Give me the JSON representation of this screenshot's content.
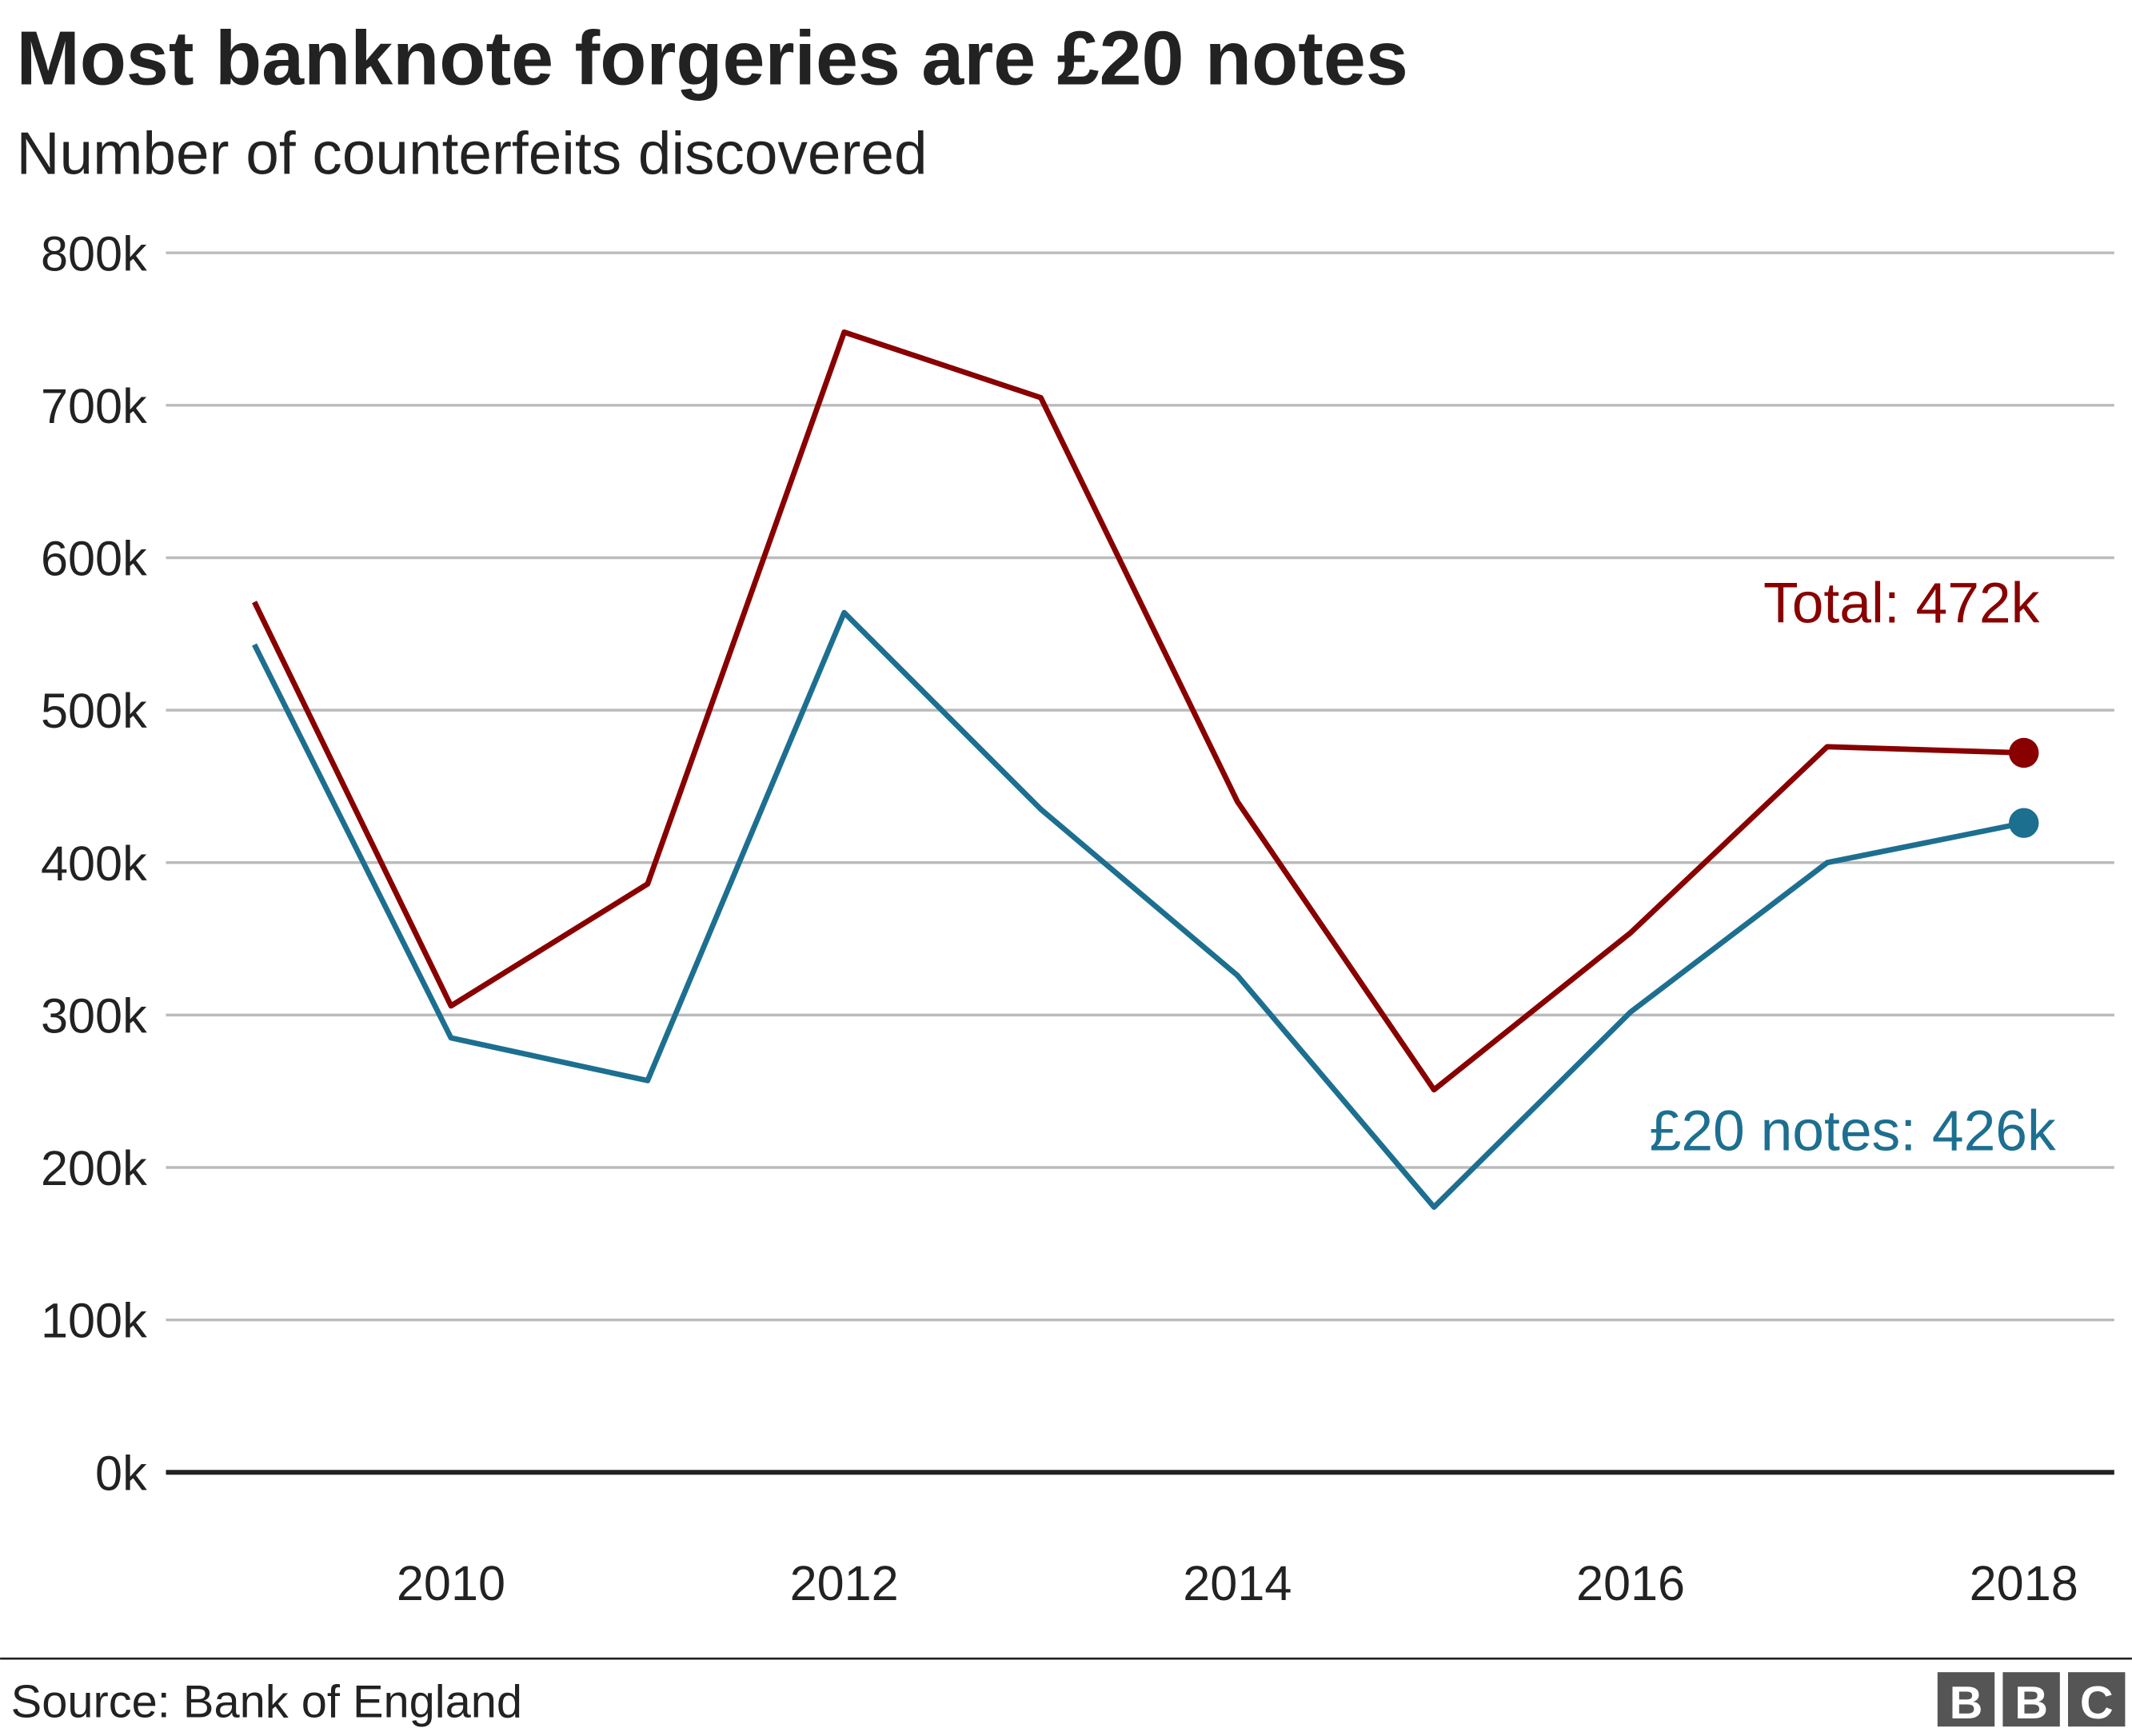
{
  "chart_data": {
    "type": "line",
    "title": "Most banknote forgeries are £20 notes",
    "subtitle": "Number of counterfeits discovered",
    "x": [
      2009,
      2010,
      2011,
      2012,
      2013,
      2014,
      2015,
      2016,
      2017,
      2018
    ],
    "series": [
      {
        "name": "Total",
        "color": "#880000",
        "values": [
          571000,
          306000,
          386000,
          748000,
          705000,
          440000,
          251000,
          354000,
          476000,
          472000
        ]
      },
      {
        "name": "£20 notes",
        "color": "#1d6f90",
        "values": [
          543000,
          285000,
          257000,
          564000,
          435000,
          326000,
          174000,
          302000,
          400000,
          426000
        ]
      }
    ],
    "annotations": [
      "Total: 472k",
      "£20 notes: 426k"
    ],
    "xlim": [
      2008.55,
      2018.46
    ],
    "xticks": [
      2010,
      2012,
      2014,
      2016,
      2018
    ],
    "ylim": [
      0,
      800000
    ],
    "yticks": [
      {
        "value": 0,
        "label": "0k"
      },
      {
        "value": 100000,
        "label": "100k"
      },
      {
        "value": 200000,
        "label": "200k"
      },
      {
        "value": 300000,
        "label": "300k"
      },
      {
        "value": 400000,
        "label": "400k"
      },
      {
        "value": 500000,
        "label": "500k"
      },
      {
        "value": 600000,
        "label": "600k"
      },
      {
        "value": 700000,
        "label": "700k"
      },
      {
        "value": 800000,
        "label": "800k"
      }
    ],
    "grid": true,
    "source": "Source: Bank of England",
    "logo": [
      "B",
      "B",
      "C"
    ]
  }
}
